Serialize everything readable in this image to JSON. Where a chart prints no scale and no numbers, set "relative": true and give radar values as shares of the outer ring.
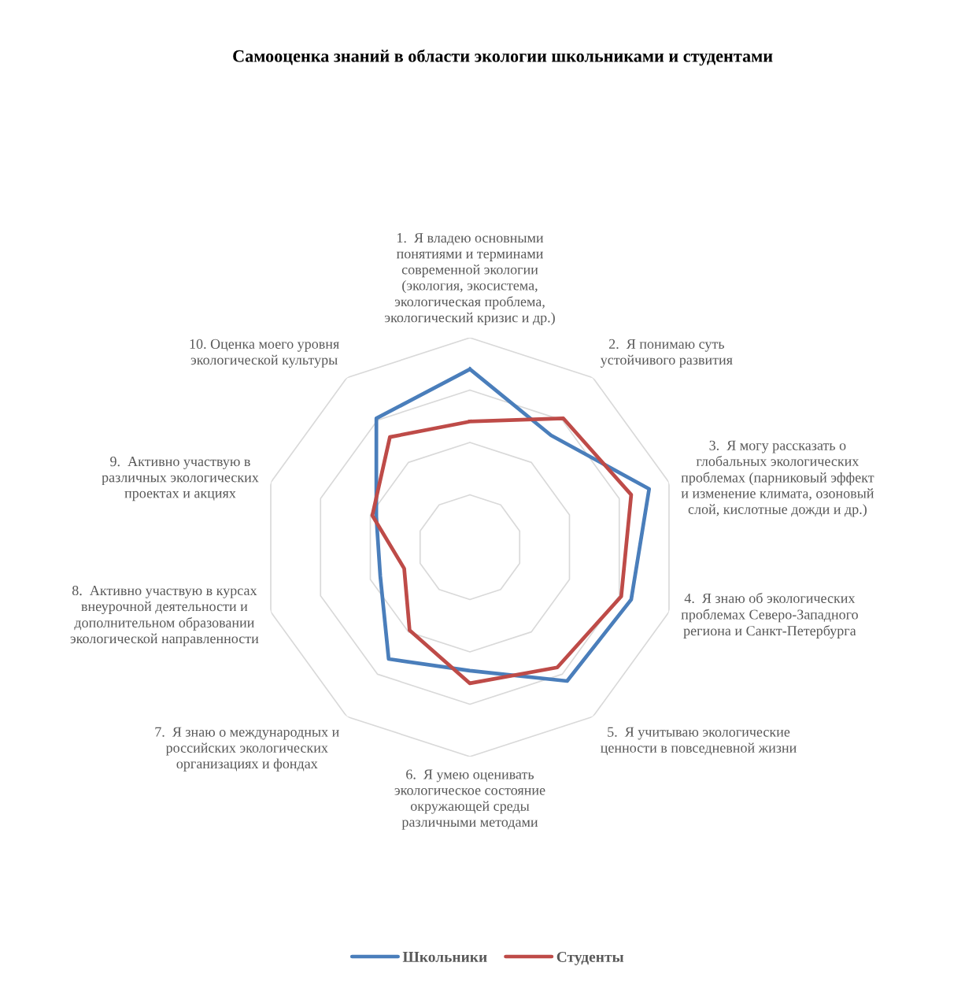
{
  "chart_data": {
    "type": "radar",
    "title": "Самооценка знаний в области экологии школьниками и студентами",
    "relative": true,
    "grid": true,
    "legend": "bottom",
    "line_style": "solid",
    "marker": "none",
    "categories": [
      "1.  Я владею основными\nпонятиями и терминами\nсовременной экологии\n(экология, экосистема,\nэкологическая проблема,\nэкологический кризис и др.)",
      "2.  Я понимаю суть\nустойчивого развития",
      "3.  Я могу рассказать о\nглобальных экологических\nпроблемах (парниковый эффект\nи изменение климата, озоновый\nслой, кислотные дожди и др.)",
      "4.  Я знаю об экологических\nпроблемах Северо-Западного\nрегиона и Санкт-Петербурга",
      "5.  Я учитываю экологические\nценности в повседневной жизни",
      "6.  Я умею оценивать\nэкологическое состояние\nокружающей среды\nразличными методами",
      "7.  Я знаю о международных и\nроссийских экологических\nорганизациях и фондах",
      "8.  Активно участвую в курсах\nвнеурочной деятельности и\nдополнительном образовании\nэкологической направленности",
      "9.  Активно участвую в\nразличных экологических\nпроектах и акциях",
      "10. Оценка моего уровня\nэкологической культуры"
    ],
    "series": [
      {
        "name": "Школьники",
        "color": "#4a7ebb",
        "values": [
          0.85,
          0.66,
          0.9,
          0.81,
          0.79,
          0.59,
          0.66,
          0.45,
          0.47,
          0.76
        ]
      },
      {
        "name": "Студенты",
        "color": "#be4b48",
        "values": [
          0.6,
          0.76,
          0.81,
          0.76,
          0.71,
          0.65,
          0.49,
          0.33,
          0.49,
          0.65
        ]
      }
    ]
  }
}
